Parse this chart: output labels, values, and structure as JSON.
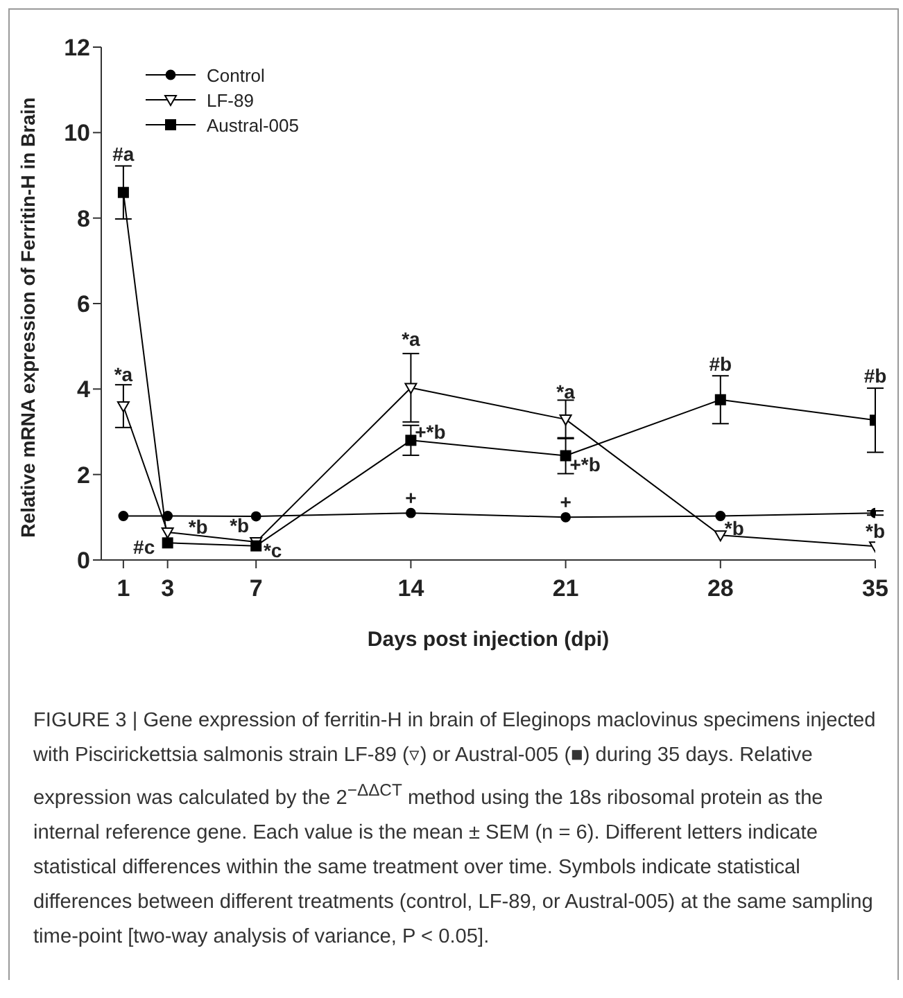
{
  "chart_data": {
    "type": "line",
    "xlabel": "Days post injection (dpi)",
    "ylabel": "Relative mRNA expression of Ferritin-H in Brain",
    "x": [
      1,
      3,
      7,
      14,
      21,
      28,
      35
    ],
    "xlim": [
      0,
      35
    ],
    "xticks": [
      1,
      3,
      7,
      14,
      21,
      28,
      35
    ],
    "ylim": [
      0,
      12
    ],
    "yticks": [
      0,
      2,
      4,
      6,
      8,
      10,
      12
    ],
    "legend": "top left",
    "grid": false,
    "series": [
      {
        "name": "Control",
        "color": "#000000",
        "marker": "circle",
        "values": [
          1.03,
          1.03,
          1.02,
          1.1,
          1.0,
          1.03,
          1.1
        ],
        "errors": [
          null,
          null,
          null,
          null,
          null,
          null,
          0.05
        ]
      },
      {
        "name": "LF-89",
        "color": "#000000",
        "marker": "triangle",
        "values": [
          3.6,
          0.65,
          0.42,
          4.03,
          3.29,
          0.58,
          0.32
        ],
        "errors": [
          0.5,
          null,
          null,
          0.8,
          0.45,
          null,
          null
        ]
      },
      {
        "name": "Austral-005",
        "color": "#000000",
        "marker": "square",
        "values": [
          8.6,
          0.4,
          0.33,
          2.8,
          2.44,
          3.75,
          3.27
        ],
        "errors": [
          0.62,
          null,
          null,
          0.35,
          0.42,
          0.56,
          0.75
        ]
      }
    ],
    "annotations": [
      {
        "text": "#a",
        "x": 1,
        "y": 8.6
      },
      {
        "text": "*a",
        "x": 1,
        "y": 3.6
      },
      {
        "text": "*b",
        "x": 3,
        "y": 0.65
      },
      {
        "text": "#c",
        "x": 3,
        "y": 0.4
      },
      {
        "text": "*b",
        "x": 7,
        "y": 0.42
      },
      {
        "text": "*c",
        "x": 7,
        "y": 0.33
      },
      {
        "text": "*a",
        "x": 14,
        "y": 4.03
      },
      {
        "text": "+*b",
        "x": 14,
        "y": 2.8
      },
      {
        "text": "+",
        "x": 14,
        "y": 1.1
      },
      {
        "text": "*a",
        "x": 21,
        "y": 3.29
      },
      {
        "text": "+*b",
        "x": 21,
        "y": 2.44
      },
      {
        "text": "+",
        "x": 21,
        "y": 1.0
      },
      {
        "text": "#b",
        "x": 28,
        "y": 3.75
      },
      {
        "text": "*b",
        "x": 28,
        "y": 0.58
      },
      {
        "text": "#b",
        "x": 35,
        "y": 3.27
      },
      {
        "text": "*b",
        "x": 35,
        "y": 0.32
      },
      "FIGURE 3 | Gene expression of ferritin-H in brain of Eleginops maclovinus specimens injected with Piscirickettsia salmonis strain LF-89 (▿) or Austral-005 (■) during 35 days. Relative expression was calculated by the 2$^{−ΔΔCT}$ method using the 18s ribosomal protein as the internal reference gene. Each value is the mean ± SEM (n = 6). Different letters indicate statistical differences within the same treatment over time. Symbols indicate statistical differences between different treatments (control, LF-89, or Austral-005) at the same sampling time-point [two-way analysis of variance, P < 0.05]."
    ]
  }
}
